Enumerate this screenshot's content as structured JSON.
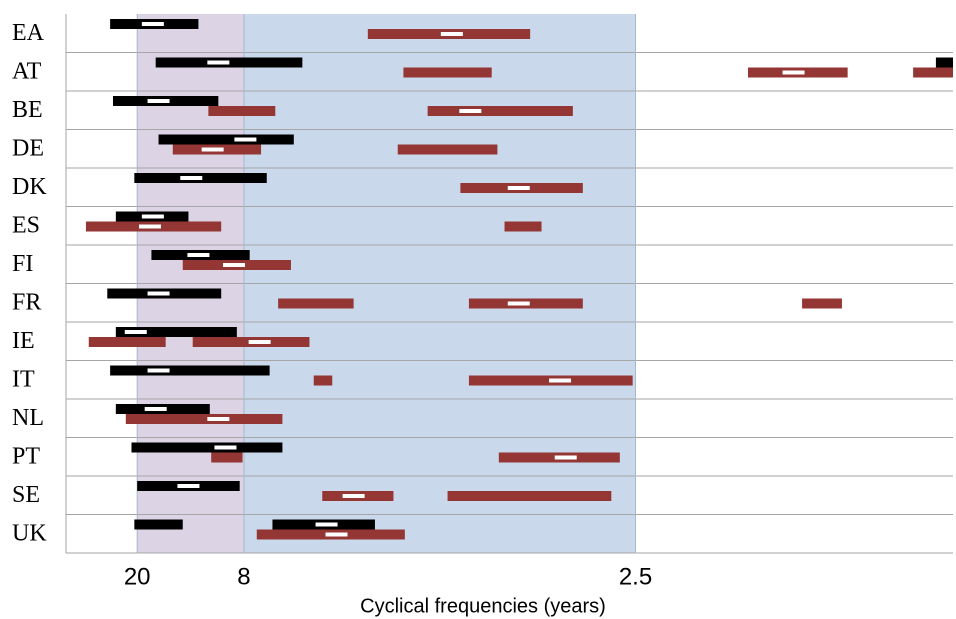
{
  "chart_data": {
    "type": "band-intervals",
    "xlabel": "Cyclical frequencies (years)",
    "xlim": [
      0,
      0.623
    ],
    "xticks": [
      {
        "value": 0.05,
        "label": "20"
      },
      {
        "value": 0.125,
        "label": "8"
      },
      {
        "value": 0.4,
        "label": "2.5"
      }
    ],
    "shade_colors": [
      "#dcd3e4",
      "#c9d8eb"
    ],
    "colors": [
      "#000000",
      "#943634"
    ],
    "peak_color": "#ffffff",
    "rows": [
      {
        "label": "EA",
        "bands": [
          [
            {
              "from": 0.031,
              "to": 0.093,
              "peak": 0.061
            }
          ],
          [
            {
              "from": 0.212,
              "to": 0.326,
              "peak": 0.271
            }
          ]
        ]
      },
      {
        "label": "AT",
        "bands": [
          [
            {
              "from": 0.063,
              "to": 0.166,
              "peak": 0.107
            },
            {
              "from": 0.611,
              "to": 0.623
            }
          ],
          [
            {
              "from": 0.237,
              "to": 0.299
            },
            {
              "from": 0.479,
              "to": 0.549,
              "peak": 0.511
            },
            {
              "from": 0.595,
              "to": 0.623
            }
          ]
        ]
      },
      {
        "label": "BE",
        "bands": [
          [
            {
              "from": 0.033,
              "to": 0.107,
              "peak": 0.065
            }
          ],
          [
            {
              "from": 0.1,
              "to": 0.147
            },
            {
              "from": 0.254,
              "to": 0.356,
              "peak": 0.284
            }
          ]
        ]
      },
      {
        "label": "DE",
        "bands": [
          [
            {
              "from": 0.065,
              "to": 0.16,
              "peak": 0.126
            }
          ],
          [
            {
              "from": 0.075,
              "to": 0.137,
              "peak": 0.103
            },
            {
              "from": 0.233,
              "to": 0.303
            }
          ]
        ]
      },
      {
        "label": "DK",
        "bands": [
          [
            {
              "from": 0.048,
              "to": 0.141,
              "peak": 0.088
            }
          ],
          [
            {
              "from": 0.277,
              "to": 0.363,
              "peak": 0.318
            }
          ]
        ]
      },
      {
        "label": "ES",
        "bands": [
          [
            {
              "from": 0.035,
              "to": 0.086,
              "peak": 0.061
            }
          ],
          [
            {
              "from": 0.014,
              "to": 0.109,
              "peak": 0.059
            },
            {
              "from": 0.308,
              "to": 0.334
            }
          ]
        ]
      },
      {
        "label": "FI",
        "bands": [
          [
            {
              "from": 0.06,
              "to": 0.129,
              "peak": 0.093
            }
          ],
          [
            {
              "from": 0.082,
              "to": 0.158,
              "peak": 0.118
            }
          ]
        ]
      },
      {
        "label": "FR",
        "bands": [
          [
            {
              "from": 0.029,
              "to": 0.109,
              "peak": 0.065
            }
          ],
          [
            {
              "from": 0.149,
              "to": 0.202
            },
            {
              "from": 0.283,
              "to": 0.363,
              "peak": 0.318
            },
            {
              "from": 0.517,
              "to": 0.545
            }
          ]
        ]
      },
      {
        "label": "IE",
        "bands": [
          [
            {
              "from": 0.035,
              "to": 0.12,
              "peak": 0.049
            }
          ],
          [
            {
              "from": 0.016,
              "to": 0.07
            },
            {
              "from": 0.089,
              "to": 0.171,
              "peak": 0.136
            }
          ]
        ]
      },
      {
        "label": "IT",
        "bands": [
          [
            {
              "from": 0.031,
              "to": 0.143,
              "peak": 0.065
            }
          ],
          [
            {
              "from": 0.174,
              "to": 0.187
            },
            {
              "from": 0.283,
              "to": 0.398,
              "peak": 0.347
            }
          ]
        ]
      },
      {
        "label": "NL",
        "bands": [
          [
            {
              "from": 0.035,
              "to": 0.101,
              "peak": 0.063
            }
          ],
          [
            {
              "from": 0.042,
              "to": 0.152,
              "peak": 0.107
            }
          ]
        ]
      },
      {
        "label": "PT",
        "bands": [
          [
            {
              "from": 0.046,
              "to": 0.152,
              "peak": 0.112
            }
          ],
          [
            {
              "from": 0.102,
              "to": 0.124
            },
            {
              "from": 0.304,
              "to": 0.389,
              "peak": 0.351
            }
          ]
        ]
      },
      {
        "label": "SE",
        "bands": [
          [
            {
              "from": 0.05,
              "to": 0.122,
              "peak": 0.086
            }
          ],
          [
            {
              "from": 0.18,
              "to": 0.23,
              "peak": 0.202
            },
            {
              "from": 0.268,
              "to": 0.383
            }
          ]
        ]
      },
      {
        "label": "UK",
        "bands": [
          [
            {
              "from": 0.048,
              "to": 0.082
            },
            {
              "from": 0.145,
              "to": 0.217,
              "peak": 0.183
            }
          ],
          [
            {
              "from": 0.134,
              "to": 0.238,
              "peak": 0.19
            }
          ]
        ]
      }
    ]
  }
}
